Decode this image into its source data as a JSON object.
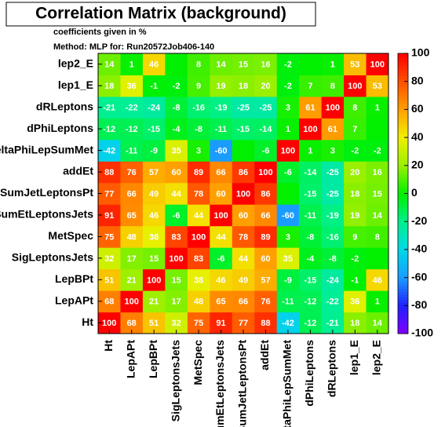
{
  "chart_data": {
    "type": "heatmap",
    "title": "Correlation Matrix (background)",
    "subtitle": "coefficients given in %",
    "method": "Method: MLP for: Run20572Job406-140",
    "x": [
      "Ht",
      "LepAPt",
      "LepBPt",
      "SigLeptonsJets",
      "MetSpec",
      "SumEtLeptonsJets",
      "VSumJetLeptonsPt",
      "addEt",
      "DeltaPhiLepSumMet",
      "dPhiLeptons",
      "dRLeptons",
      "lep1_E",
      "lep2_E"
    ],
    "y": [
      "Ht",
      "LepAPt",
      "LepBPt",
      "SigLeptonsJets",
      "MetSpec",
      "SumEtLeptonsJets",
      "VSumJetLeptonsPt",
      "addEt",
      "DeltaPhiLepSumMet",
      "dPhiLeptons",
      "dRLeptons",
      "lep1_E",
      "lep2_E"
    ],
    "values": [
      [
        100,
        68,
        51,
        32,
        75,
        91,
        77,
        88,
        -42,
        -12,
        -21,
        18,
        14
      ],
      [
        68,
        100,
        21,
        17,
        48,
        65,
        66,
        76,
        -11,
        -12,
        -22,
        36,
        1
      ],
      [
        51,
        21,
        100,
        15,
        38,
        46,
        49,
        57,
        -9,
        -15,
        -24,
        -1,
        46
      ],
      [
        32,
        17,
        15,
        100,
        83,
        -6,
        44,
        60,
        35,
        -4,
        -8,
        -2,
        0
      ],
      [
        75,
        48,
        38,
        83,
        100,
        44,
        78,
        89,
        3,
        -8,
        -16,
        9,
        8
      ],
      [
        91,
        65,
        46,
        -6,
        44,
        100,
        60,
        66,
        -60,
        -11,
        -19,
        19,
        14
      ],
      [
        77,
        66,
        49,
        44,
        78,
        60,
        100,
        86,
        0,
        -15,
        -25,
        18,
        15
      ],
      [
        88,
        76,
        57,
        60,
        89,
        66,
        86,
        100,
        -6,
        -14,
        -25,
        20,
        16
      ],
      [
        -42,
        -11,
        -9,
        35,
        3,
        -60,
        0,
        -6,
        100,
        1,
        3,
        -2,
        -2
      ],
      [
        -12,
        -12,
        -15,
        -4,
        -8,
        -11,
        -15,
        -14,
        1,
        100,
        61,
        7,
        0
      ],
      [
        -21,
        -22,
        -24,
        -8,
        -16,
        -19,
        -25,
        -25,
        3,
        61,
        100,
        8,
        1
      ],
      [
        18,
        36,
        -1,
        -2,
        9,
        19,
        18,
        20,
        -2,
        7,
        8,
        100,
        53
      ],
      [
        14,
        1,
        46,
        0,
        8,
        14,
        15,
        16,
        -2,
        0,
        1,
        53,
        100
      ]
    ],
    "zlim": [
      -100,
      100
    ],
    "zticks": [
      -100,
      -80,
      -60,
      -40,
      -20,
      0,
      20,
      40,
      60,
      80,
      100
    ],
    "colorscale": [
      "#8000ff",
      "#2020ff",
      "#1a9cff",
      "#00d8e8",
      "#00f08c",
      "#00f000",
      "#9af000",
      "#f0f000",
      "#ffa000",
      "#ff5000",
      "#ff0000"
    ]
  }
}
